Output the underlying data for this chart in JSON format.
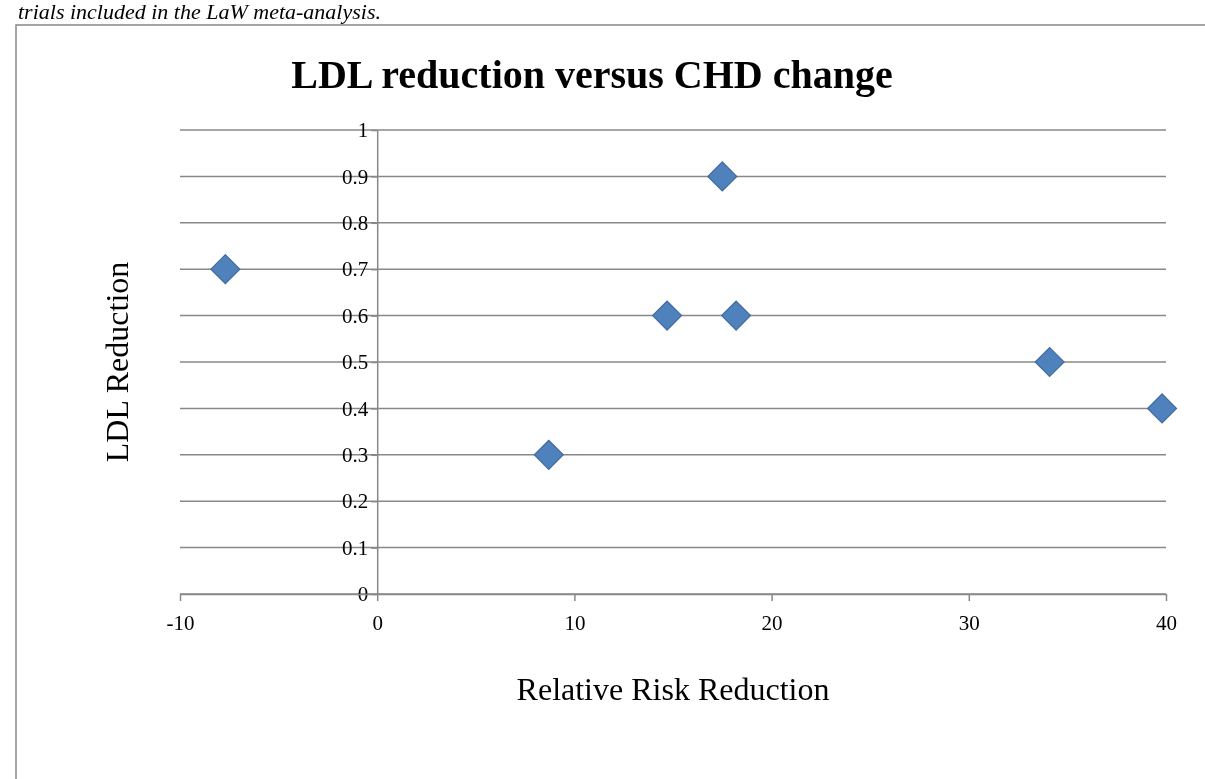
{
  "chart_data": {
    "type": "scatter",
    "title": "LDL reduction versus CHD change",
    "xlabel": "Relative Risk Reduction",
    "ylabel": "LDL Reduction",
    "annotations": [
      "trials included in the LaW meta-analysis."
    ],
    "x": [
      -7.7,
      8.7,
      14.7,
      17.5,
      18.2,
      34.1,
      39.8
    ],
    "values": [
      0.7,
      0.3,
      0.6,
      0.9,
      0.6,
      0.5,
      0.4
    ],
    "color": "#4f81bd",
    "marker": "diamond",
    "grid": "y",
    "xlim": [
      -10,
      40
    ],
    "xticks": [
      -10,
      0,
      10,
      20,
      30,
      40
    ],
    "ylim": [
      0,
      1
    ],
    "yticks": [
      0,
      0.1,
      0.2,
      0.3,
      0.4,
      0.5,
      0.6,
      0.7,
      0.8,
      0.9,
      1
    ]
  }
}
